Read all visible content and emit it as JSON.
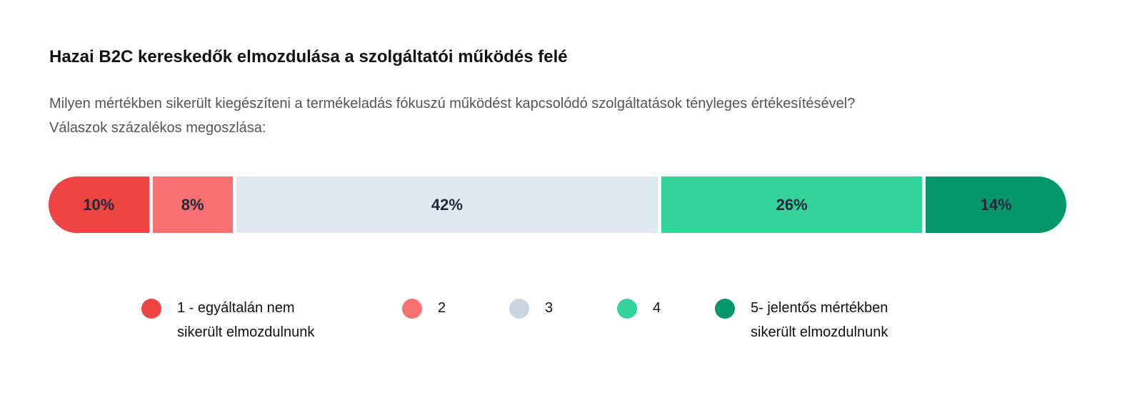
{
  "chart_data": {
    "type": "bar",
    "orientation": "horizontal-stacked-100",
    "title": "Hazai B2C kereskedők elmozdulása a szolgáltatói működés felé",
    "subtitle": "Milyen mértékben sikerült kiegészíteni a termékeladás fókuszú működést kapcsolódó szolgáltatások tényleges értékesítésével? Válaszok százalékos megoszlása:",
    "unit": "%",
    "legend_position": "bottom",
    "series": [
      {
        "name": "1 - egyáltalán nem\nsikerült elmozdulnunk",
        "value": 10,
        "label": "10%",
        "color": "#ef4444",
        "legend_color": "#ef4444"
      },
      {
        "name": "2",
        "value": 8,
        "label": "8%",
        "color": "#f87171",
        "legend_color": "#f87171"
      },
      {
        "name": "3",
        "value": 42,
        "label": "42%",
        "color": "#e2e8f0",
        "legend_color": "#cbd5e1"
      },
      {
        "name": "4",
        "value": 26,
        "label": "26%",
        "color": "#34d399",
        "legend_color": "#34d399"
      },
      {
        "name": "5- jelentős mértékben\nsikerült elmozdulnunk",
        "value": 14,
        "label": "14%",
        "color": "#059669",
        "legend_color": "#059669"
      }
    ]
  }
}
